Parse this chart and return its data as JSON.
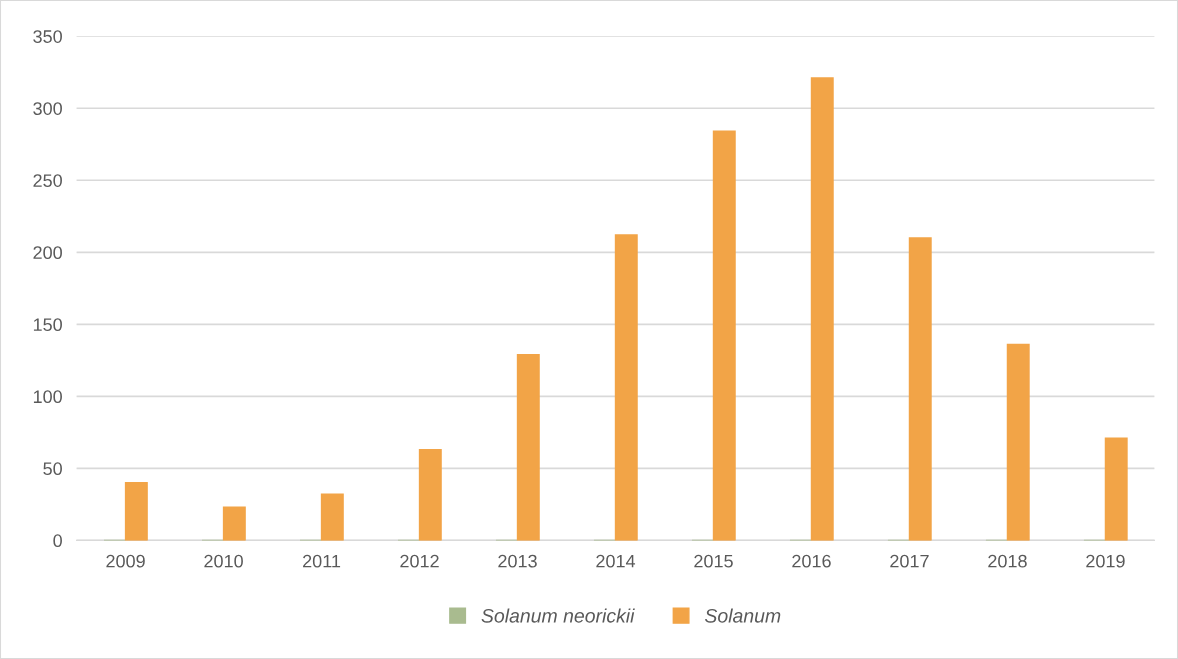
{
  "chart_data": {
    "type": "bar",
    "categories": [
      "2009",
      "2010",
      "2011",
      "2012",
      "2013",
      "2014",
      "2015",
      "2016",
      "2017",
      "2018",
      "2019"
    ],
    "series": [
      {
        "name": "Solanum neorickii",
        "color": "#a9bb8f",
        "values": [
          0,
          0,
          0,
          0,
          0,
          0,
          0,
          0,
          0,
          0,
          0
        ]
      },
      {
        "name": "Solanum",
        "color": "#f2a447",
        "values": [
          40,
          23,
          32,
          63,
          129,
          212,
          284,
          321,
          210,
          136,
          71
        ]
      }
    ],
    "ylim": [
      0,
      350
    ],
    "yticks": [
      0,
      50,
      100,
      150,
      200,
      250,
      300,
      350
    ],
    "grid": "y",
    "legend": "bottom"
  }
}
